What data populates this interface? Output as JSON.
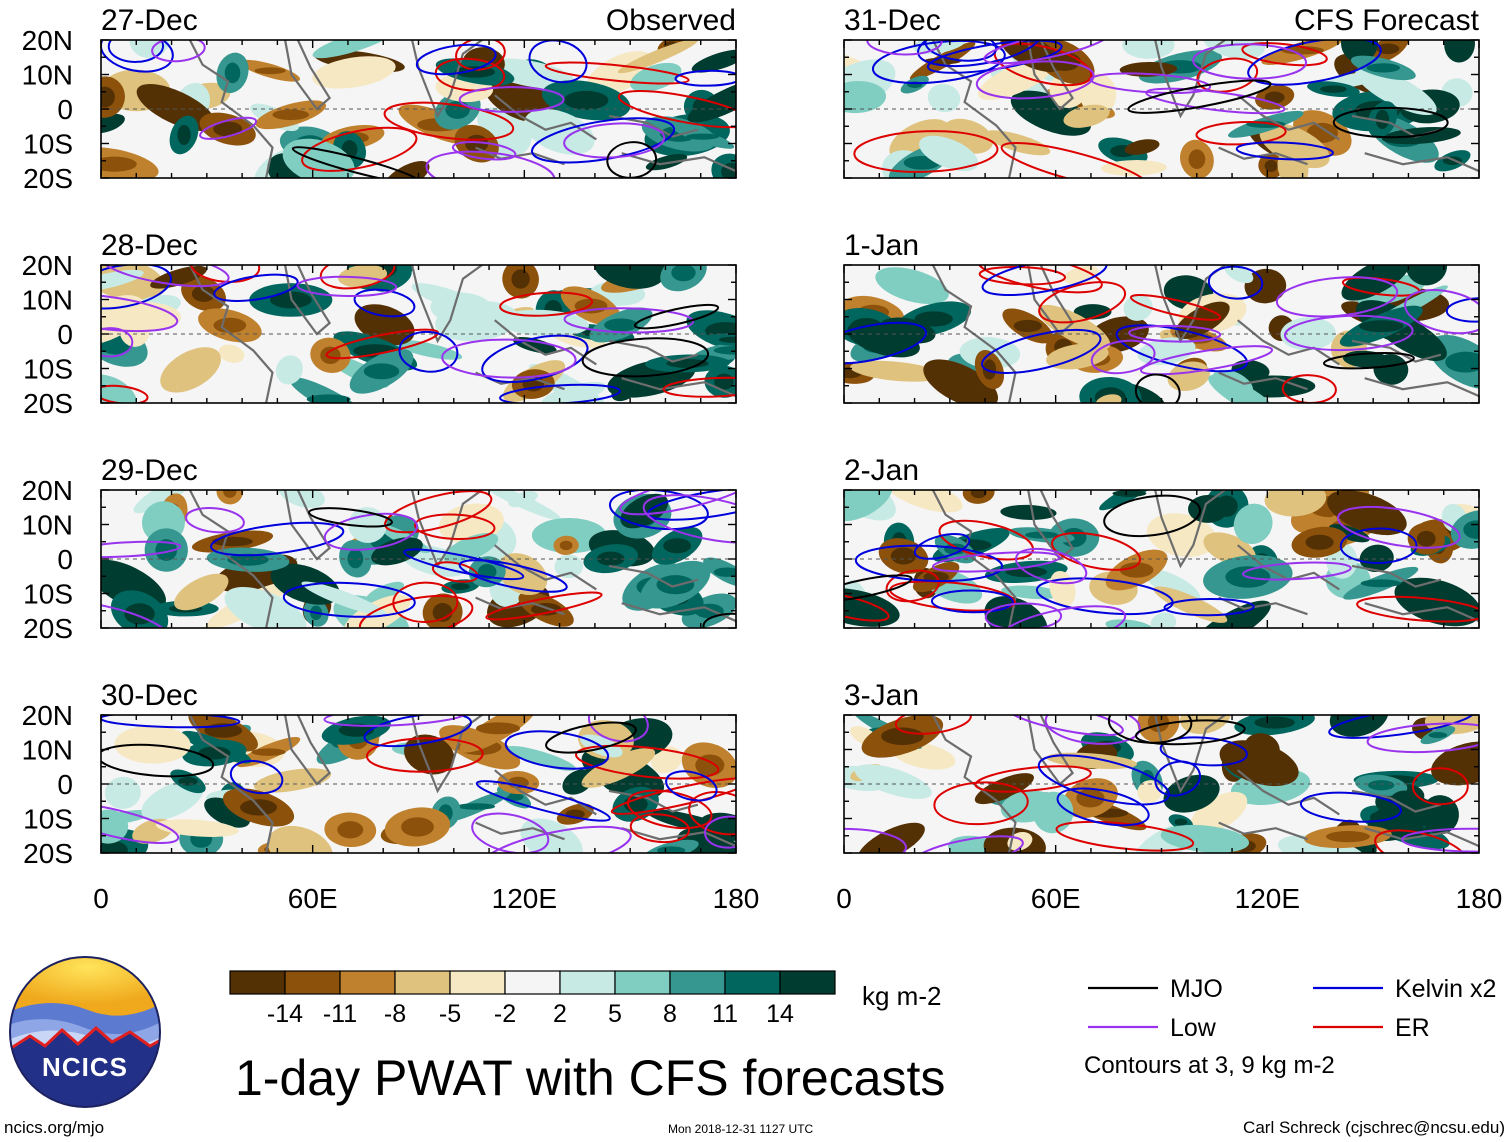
{
  "chart_data": {
    "type": "heatmap",
    "title": "1-day PWAT with CFS forecasts",
    "units": "kg m-2",
    "x_ticks": [
      "0",
      "60E",
      "120E",
      "180"
    ],
    "y_ticks": [
      "20N",
      "10N",
      "0",
      "10S",
      "20S"
    ],
    "xlim": [
      0,
      180
    ],
    "ylim": [
      -20,
      20
    ],
    "columns": [
      {
        "header": "Observed",
        "panels": [
          "27-Dec",
          "28-Dec",
          "29-Dec",
          "30-Dec"
        ]
      },
      {
        "header": "CFS Forecast",
        "panels": [
          "31-Dec",
          "1-Jan",
          "2-Jan",
          "3-Jan"
        ]
      }
    ],
    "colorbar": {
      "ticks": [
        "-14",
        "-11",
        "-8",
        "-5",
        "-2",
        "2",
        "5",
        "8",
        "11",
        "14"
      ],
      "colors": [
        "#543005",
        "#8c510a",
        "#bf812d",
        "#dfc27d",
        "#f6e8c3",
        "#f5f5f5",
        "#c7eae5",
        "#80cdc1",
        "#35978f",
        "#01665e",
        "#003c30"
      ]
    },
    "legend": [
      {
        "label": "MJO",
        "color": "#000000"
      },
      {
        "label": "Kelvin x2",
        "color": "#0000dd"
      },
      {
        "label": "Low",
        "color": "#9933ee"
      },
      {
        "label": "ER",
        "color": "#dd0000"
      }
    ],
    "contour_note": "Contours at 3, 9 kg m-2"
  },
  "footer": {
    "logo_text": "NCICS",
    "site": "ncics.org/mjo",
    "timestamp": "Mon 2018-12-31 1127 UTC",
    "credit": "Carl Schreck (cjschrec@ncsu.edu)"
  }
}
